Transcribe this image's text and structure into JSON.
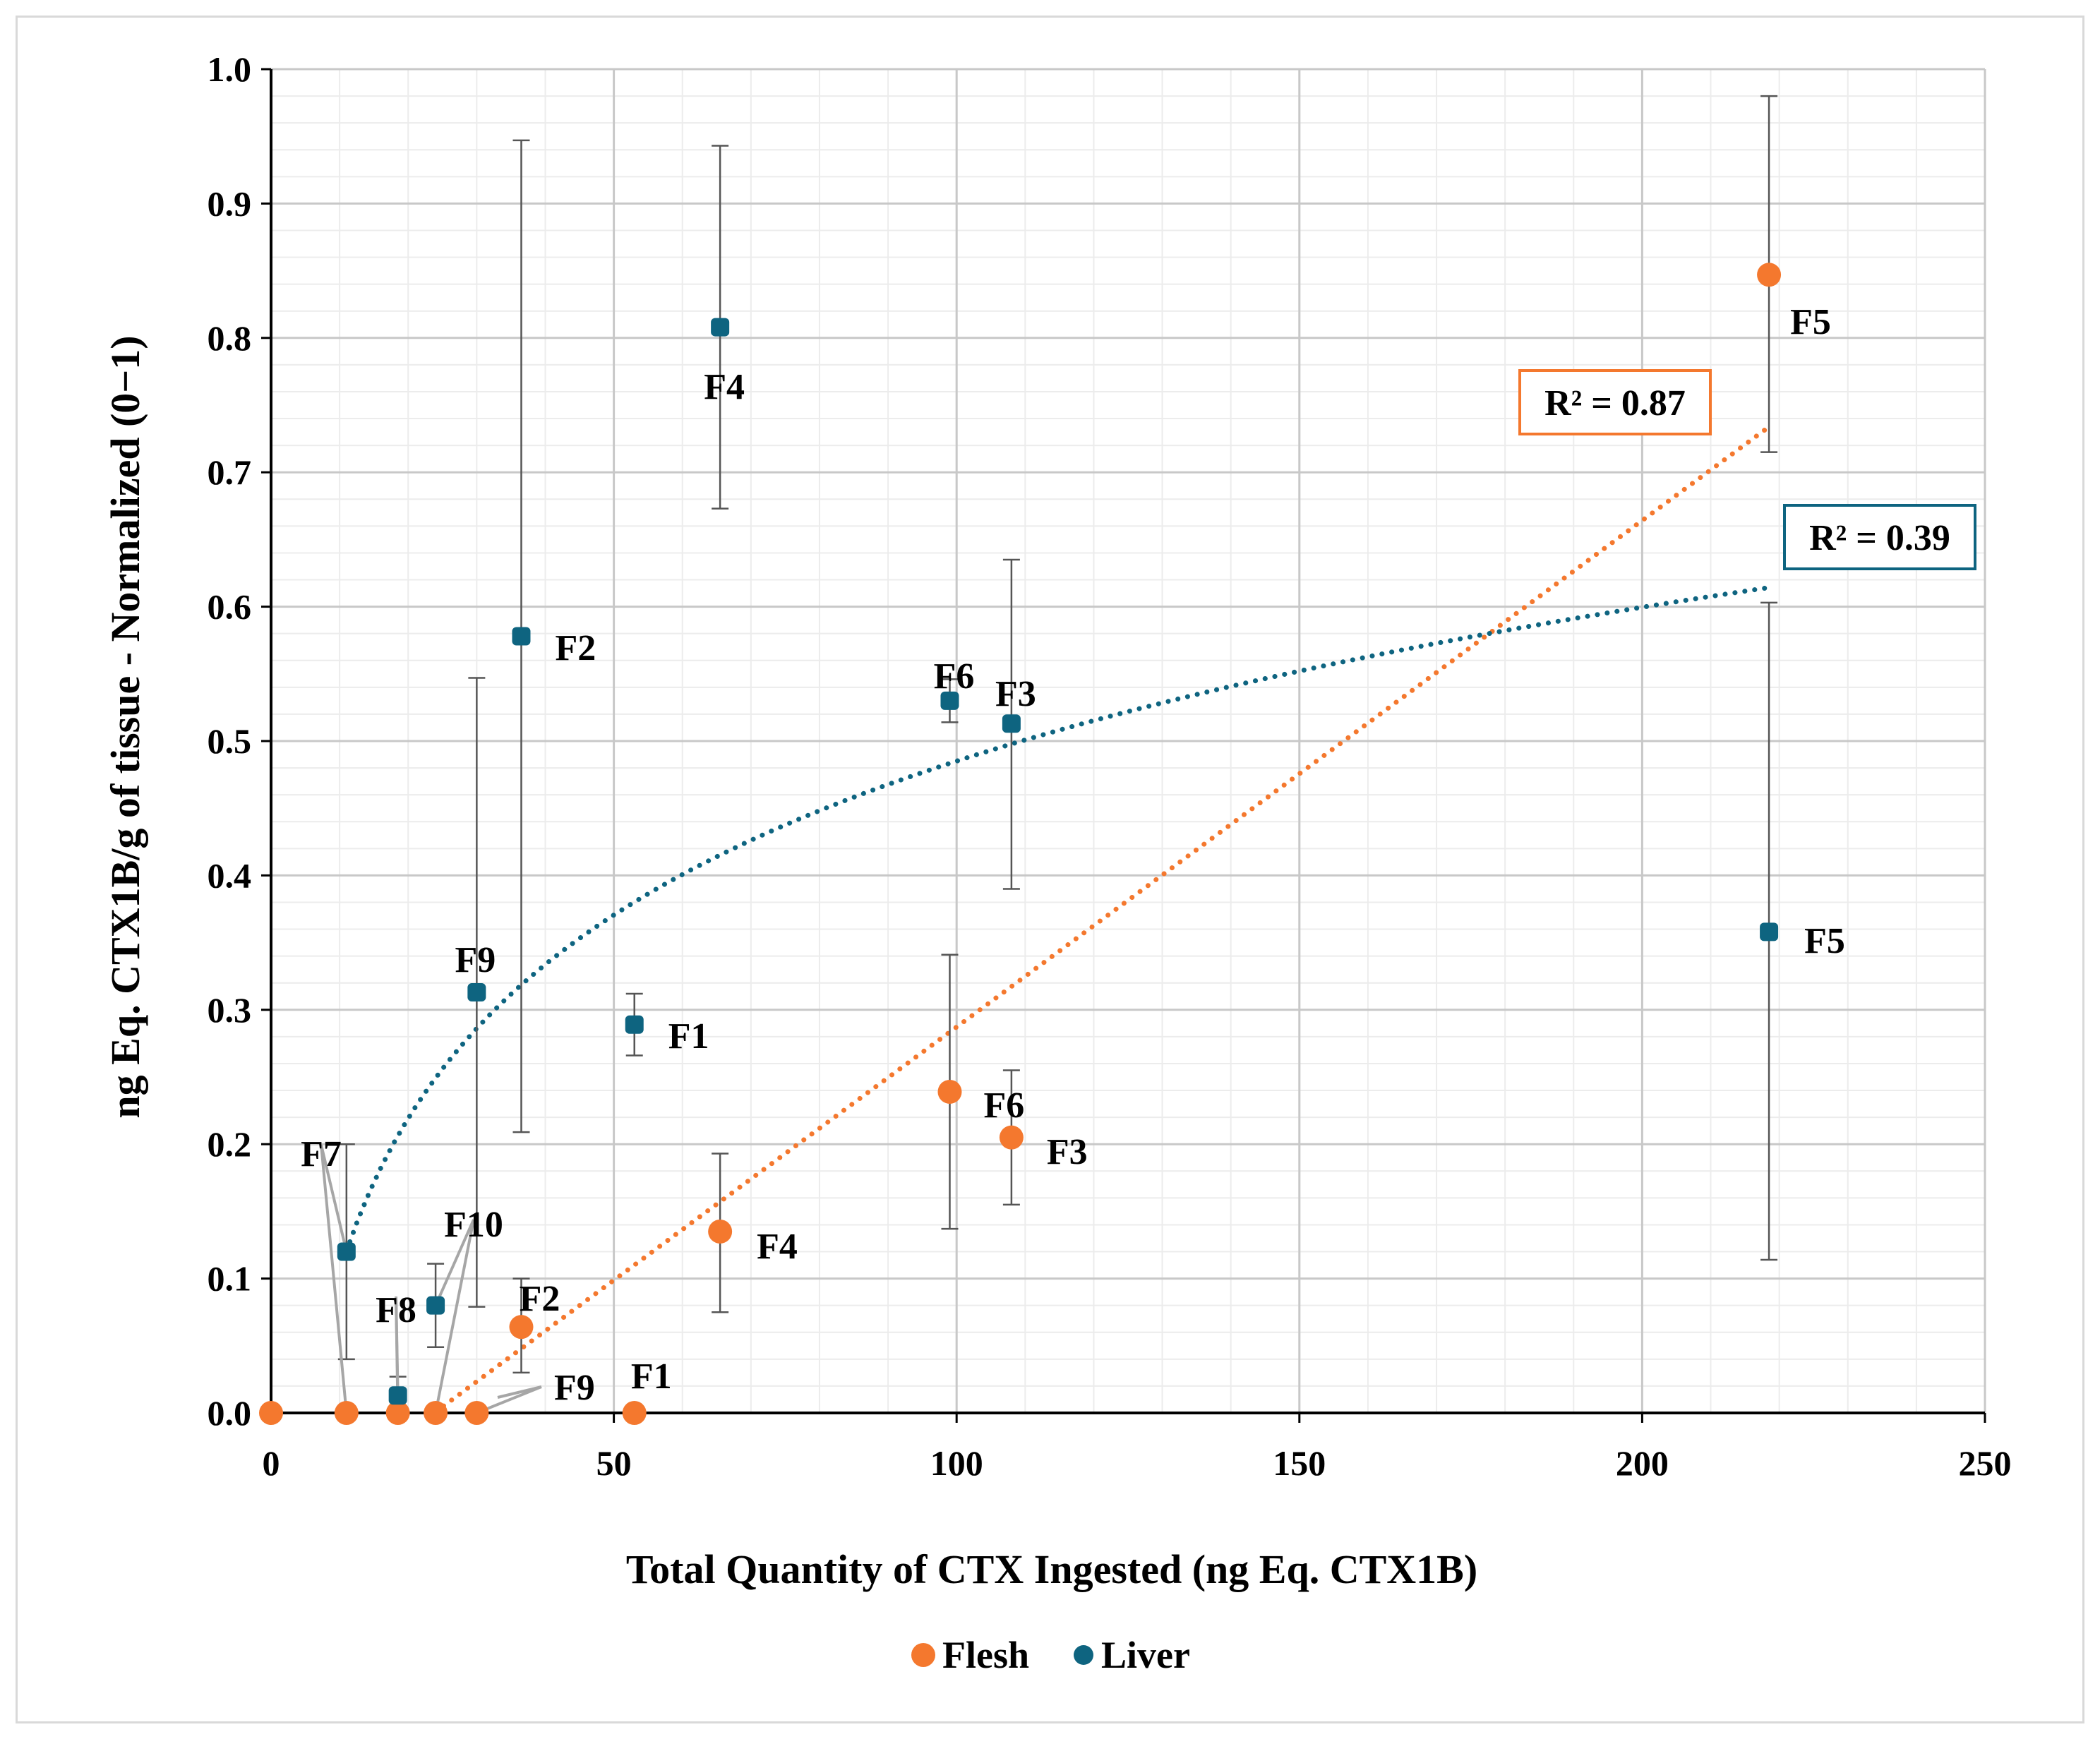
{
  "chart_data": {
    "type": "scatter",
    "title": "",
    "xlabel": "Total Quantity of CTX Ingested (ng Eq. CTX1B)",
    "ylabel": "ng Eq. CTX1B/g of tissue - Normalized (0−1)",
    "xlim": [
      0,
      250
    ],
    "ylim": [
      0,
      1.0
    ],
    "x_ticks": [
      0,
      50,
      100,
      150,
      200,
      250
    ],
    "y_ticks": [
      0.0,
      0.1,
      0.2,
      0.3,
      0.4,
      0.5,
      0.6,
      0.7,
      0.8,
      0.9,
      1.0
    ],
    "x_tick_labels": [
      "0",
      "50",
      "100",
      "150",
      "200",
      "250"
    ],
    "y_tick_labels": [
      "0.0",
      "0.1",
      "0.2",
      "0.3",
      "0.4",
      "0.5",
      "0.6",
      "0.7",
      "0.8",
      "0.9",
      "1.0"
    ],
    "grid": true,
    "legend_position": "bottom",
    "series": [
      {
        "name": "Flesh",
        "color": "#f4782e",
        "marker": "circle",
        "points": [
          {
            "x": 0,
            "y": 0.0,
            "label": ""
          },
          {
            "x": 11,
            "y": 0.0,
            "label": "F7"
          },
          {
            "x": 18.5,
            "y": 0.0,
            "label": "F8"
          },
          {
            "x": 24,
            "y": 0.0,
            "label": "F10"
          },
          {
            "x": 30,
            "y": 0.0,
            "label": "F9"
          },
          {
            "x": 36.5,
            "y": 0.064,
            "label": "F2",
            "err_low": 0.03,
            "err_high": 0.1
          },
          {
            "x": 53,
            "y": 0.0,
            "label": "F1"
          },
          {
            "x": 65.5,
            "y": 0.135,
            "label": "F4",
            "err_low": 0.075,
            "err_high": 0.193
          },
          {
            "x": 99,
            "y": 0.239,
            "label": "F6",
            "err_low": 0.137,
            "err_high": 0.341
          },
          {
            "x": 108,
            "y": 0.205,
            "label": "F3",
            "err_low": 0.155,
            "err_high": 0.255
          },
          {
            "x": 218.5,
            "y": 0.847,
            "label": "F5",
            "err_low": 0.715,
            "err_high": 0.98
          }
        ],
        "trendline": {
          "type": "linear",
          "r2": "R² = 0.87",
          "x_range": [
            24,
            218.5
          ],
          "slope": 0.003769,
          "intercept": -0.0897
        }
      },
      {
        "name": "Liver",
        "color": "#0e6480",
        "marker": "square",
        "points": [
          {
            "x": 11,
            "y": 0.12,
            "label": "F7",
            "err_low": 0.04,
            "err_high": 0.2
          },
          {
            "x": 18.5,
            "y": 0.013,
            "label": "F8",
            "err_low": 0.0,
            "err_high": 0.027
          },
          {
            "x": 24,
            "y": 0.08,
            "label": "F10",
            "err_low": 0.049,
            "err_high": 0.111
          },
          {
            "x": 30,
            "y": 0.313,
            "label": "F9",
            "err_low": 0.079,
            "err_high": 0.547
          },
          {
            "x": 36.5,
            "y": 0.578,
            "label": "F2",
            "err_low": 0.209,
            "err_high": 0.947
          },
          {
            "x": 53,
            "y": 0.289,
            "label": "F1",
            "err_low": 0.266,
            "err_high": 0.312
          },
          {
            "x": 65.5,
            "y": 0.808,
            "label": "F4",
            "err_low": 0.673,
            "err_high": 0.943
          },
          {
            "x": 99,
            "y": 0.53,
            "label": "F6",
            "err_low": 0.514,
            "err_high": 0.546
          },
          {
            "x": 108,
            "y": 0.513,
            "label": "F3",
            "err_low": 0.39,
            "err_high": 0.635
          },
          {
            "x": 218.5,
            "y": 0.358,
            "label": "F5",
            "err_low": 0.114,
            "err_high": 0.603
          }
        ],
        "trendline": {
          "type": "logarithmic",
          "r2": "R² = 0.39",
          "x_range": [
            11,
            218.5
          ],
          "a": 0.1652,
          "b": -0.2757
        }
      }
    ]
  }
}
